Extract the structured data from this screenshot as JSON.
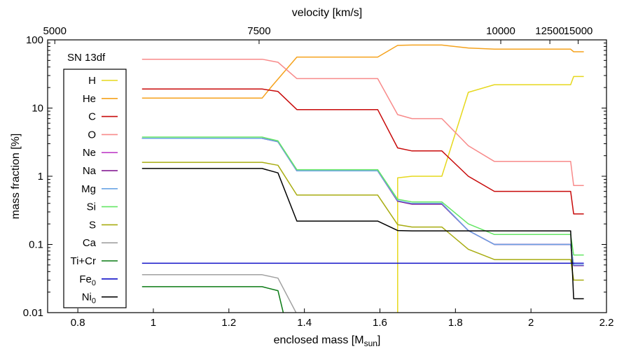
{
  "chart_data": {
    "type": "line",
    "title": "",
    "annotation": "SN 13df",
    "xlabel": "enclosed mass [M",
    "xlabel_sub": "sun",
    "xlabel_end": "]",
    "ylabel": "mass fraction [%]",
    "x2label": "velocity [km/s]",
    "xlim": [
      0.72,
      2.2
    ],
    "ylim": [
      0.01,
      100
    ],
    "yscale": "log",
    "grid": false,
    "legend_position": "top-left",
    "xticks": [
      {
        "v": 0.8,
        "label": "0.8"
      },
      {
        "v": 1.0,
        "label": "1"
      },
      {
        "v": 1.2,
        "label": "1.2"
      },
      {
        "v": 1.4,
        "label": "1.4"
      },
      {
        "v": 1.6,
        "label": "1.6"
      },
      {
        "v": 1.8,
        "label": "1.8"
      },
      {
        "v": 2.0,
        "label": "2"
      },
      {
        "v": 2.2,
        "label": "2.2"
      }
    ],
    "yticks": [
      {
        "v": 0.01,
        "label": "0.01"
      },
      {
        "v": 0.1,
        "label": "0.1"
      },
      {
        "v": 1,
        "label": "1"
      },
      {
        "v": 10,
        "label": "10"
      },
      {
        "v": 100,
        "label": "100"
      }
    ],
    "x2ticks": [
      {
        "x": 0.739,
        "label": "5000"
      },
      {
        "x": 1.28,
        "label": "7500"
      },
      {
        "x": 1.92,
        "label": "10000"
      },
      {
        "x": 2.05,
        "label": "12500"
      },
      {
        "x": 2.125,
        "label": "15000"
      }
    ],
    "series": [
      {
        "name": "H",
        "sub": "",
        "color": "#e6d81c",
        "x": [
          1.647,
          1.647,
          1.685,
          1.764,
          1.834,
          1.903,
          2.105,
          2.113,
          2.14
        ],
        "y": [
          0.002,
          0.95,
          1.0,
          1.0,
          17.0,
          22.0,
          22.0,
          29.0,
          29.0
        ]
      },
      {
        "name": "He",
        "sub": "",
        "color": "#f5a21c",
        "x": [
          0.97,
          1.288,
          1.314,
          1.38,
          1.594,
          1.647,
          1.685,
          1.764,
          1.834,
          1.903,
          2.105,
          2.113,
          2.14
        ],
        "y": [
          14.0,
          14.0,
          21.0,
          56.0,
          56.0,
          83.0,
          84.0,
          84.0,
          76.0,
          73.0,
          73.0,
          67.0,
          67.0
        ]
      },
      {
        "name": "C",
        "sub": "",
        "color": "#c80a0a",
        "x": [
          0.97,
          1.288,
          1.33,
          1.38,
          1.594,
          1.647,
          1.685,
          1.764,
          1.834,
          1.903,
          2.105,
          2.113,
          2.14
        ],
        "y": [
          19.0,
          19.0,
          17.5,
          9.5,
          9.5,
          2.6,
          2.35,
          2.35,
          1.0,
          0.6,
          0.6,
          0.28,
          0.28
        ]
      },
      {
        "name": "O",
        "sub": "",
        "color": "#f88a8a",
        "x": [
          0.97,
          1.288,
          1.33,
          1.38,
          1.594,
          1.647,
          1.685,
          1.764,
          1.834,
          1.903,
          2.105,
          2.113,
          2.14
        ],
        "y": [
          52.0,
          52.0,
          47.0,
          27.0,
          27.0,
          8.0,
          7.0,
          7.0,
          2.8,
          1.65,
          1.65,
          0.73,
          0.73
        ]
      },
      {
        "name": "Ne",
        "sub": "",
        "color": "#c040c8",
        "x": [
          0.97,
          1.288,
          1.33,
          1.38,
          1.594,
          1.647,
          1.685,
          1.764,
          1.834,
          1.903,
          2.105,
          2.113,
          2.14
        ],
        "y": [
          3.6,
          3.6,
          3.2,
          1.2,
          1.2,
          0.43,
          0.39,
          0.39,
          0.16,
          0.1,
          0.1,
          0.049,
          0.049
        ]
      },
      {
        "name": "Na",
        "sub": "",
        "color": "#7c0a8c",
        "x": [
          0.97,
          1.288,
          1.33,
          1.38,
          1.594,
          1.647,
          1.685,
          1.764,
          1.834,
          1.903,
          2.105,
          2.113,
          2.14
        ],
        "y": [
          3.6,
          3.6,
          3.2,
          1.2,
          1.2,
          0.43,
          0.39,
          0.39,
          0.16,
          0.1,
          0.1,
          0.049,
          0.049
        ]
      },
      {
        "name": "Mg",
        "sub": "",
        "color": "#6aa4e4",
        "x": [
          0.97,
          1.288,
          1.33,
          1.38,
          1.594,
          1.647,
          1.685,
          1.764,
          1.834,
          1.903,
          2.105,
          2.113,
          2.14
        ],
        "y": [
          3.6,
          3.6,
          3.2,
          1.2,
          1.2,
          0.44,
          0.4,
          0.4,
          0.16,
          0.1,
          0.1,
          0.05,
          0.05
        ]
      },
      {
        "name": "Si",
        "sub": "",
        "color": "#64e664",
        "x": [
          0.97,
          1.288,
          1.33,
          1.38,
          1.594,
          1.647,
          1.685,
          1.764,
          1.834,
          1.903,
          2.105,
          2.113,
          2.14
        ],
        "y": [
          3.75,
          3.75,
          3.3,
          1.25,
          1.25,
          0.46,
          0.42,
          0.42,
          0.2,
          0.14,
          0.14,
          0.07,
          0.07
        ]
      },
      {
        "name": "S",
        "sub": "",
        "color": "#a8ac10",
        "x": [
          0.97,
          1.288,
          1.33,
          1.38,
          1.594,
          1.647,
          1.685,
          1.764,
          1.834,
          1.903,
          2.105,
          2.113,
          2.14
        ],
        "y": [
          1.6,
          1.6,
          1.45,
          0.53,
          0.53,
          0.195,
          0.18,
          0.18,
          0.085,
          0.06,
          0.06,
          0.03,
          0.03
        ]
      },
      {
        "name": "Ca",
        "sub": "",
        "color": "#a0a0a0",
        "x": [
          0.97,
          1.288,
          1.33,
          1.38
        ],
        "y": [
          0.036,
          0.036,
          0.032,
          0.0095
        ]
      },
      {
        "name": "Ti+Cr",
        "sub": "",
        "color": "#0a7a14",
        "x": [
          0.97,
          1.288,
          1.33,
          1.345
        ],
        "y": [
          0.024,
          0.024,
          0.021,
          0.0095
        ]
      },
      {
        "name": "Fe",
        "sub": "0",
        "color": "#1010c8",
        "x": [
          0.97,
          2.14
        ],
        "y": [
          0.053,
          0.053
        ]
      },
      {
        "name": "Ni",
        "sub": "0",
        "color": "#000000",
        "x": [
          0.97,
          1.288,
          1.33,
          1.38,
          1.594,
          1.647,
          1.685,
          1.764,
          1.834,
          1.903,
          2.105,
          2.113,
          2.14
        ],
        "y": [
          1.3,
          1.3,
          1.12,
          0.22,
          0.22,
          0.16,
          0.158,
          0.158,
          0.158,
          0.158,
          0.158,
          0.016,
          0.016
        ]
      }
    ]
  }
}
